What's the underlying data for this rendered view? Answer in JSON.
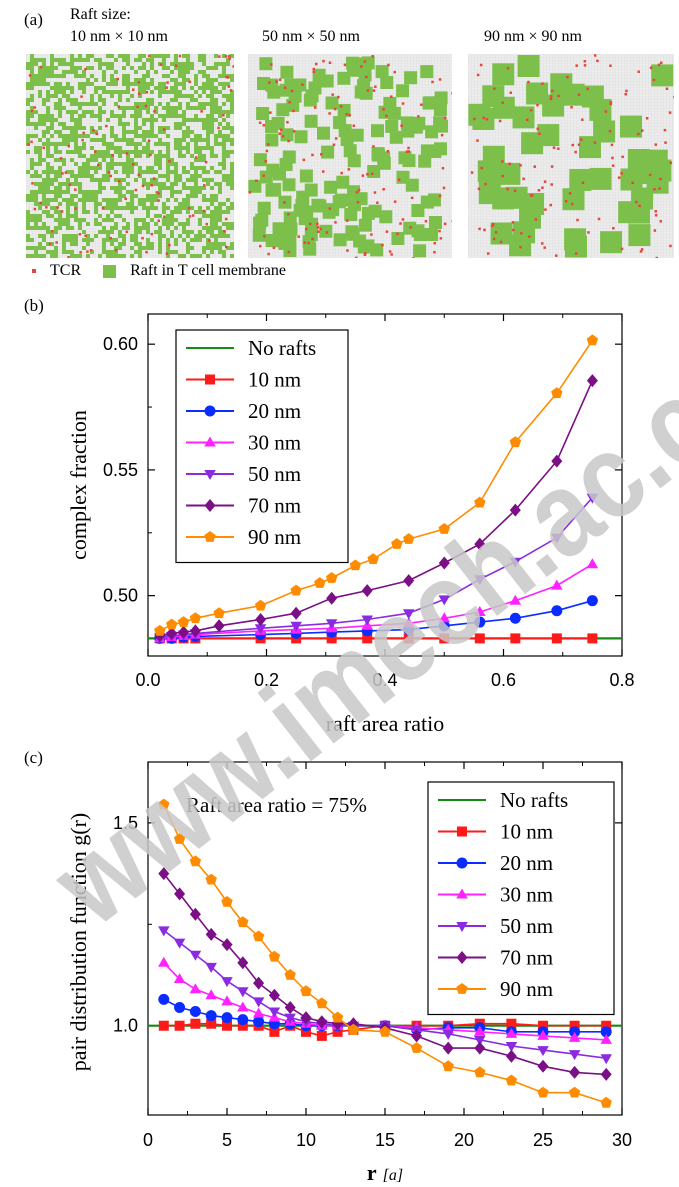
{
  "panel_a": {
    "label": "(a)",
    "title": "Raft size:",
    "sizes": [
      "10 nm × 10 nm",
      "50 nm × 50 nm",
      "90 nm × 90 nm"
    ],
    "legend": {
      "tcr": "TCR",
      "raft": "Raft in T cell membrane"
    },
    "colors": {
      "tcr": "#e8463c",
      "raft": "#7cc04b",
      "grid": "#d9d9d9"
    }
  },
  "watermark": "www.imech.ac.cn",
  "chart_data": [
    {
      "type": "line",
      "panel": "(b)",
      "xlabel": "raft area ratio",
      "ylabel": "complex fraction",
      "xlim": [
        0,
        0.8
      ],
      "ylim": [
        0.476,
        0.612
      ],
      "xticks": [
        0.0,
        0.2,
        0.4,
        0.6,
        0.8
      ],
      "xtick_labels": [
        "0.0",
        "0.2",
        "0.4",
        "0.6",
        "0.8"
      ],
      "yticks": [
        0.5,
        0.55,
        0.6
      ],
      "ytick_labels": [
        "0.50",
        "0.55",
        "0.60"
      ],
      "legend_position": "top-left",
      "series": [
        {
          "name": "No rafts",
          "color": "#138a13",
          "marker": "none",
          "x": [
            0.0,
            0.8
          ],
          "y": [
            0.483,
            0.483
          ]
        },
        {
          "name": "10 nm",
          "color": "#ff1a1a",
          "marker": "square",
          "x": [
            0.02,
            0.04,
            0.06,
            0.08,
            0.19,
            0.25,
            0.31,
            0.37,
            0.44,
            0.5,
            0.56,
            0.62,
            0.69,
            0.75
          ],
          "y": [
            0.483,
            0.483,
            0.483,
            0.483,
            0.483,
            0.483,
            0.483,
            0.483,
            0.483,
            0.483,
            0.483,
            0.483,
            0.483,
            0.483
          ]
        },
        {
          "name": "20 nm",
          "color": "#0a2cff",
          "marker": "circle",
          "x": [
            0.02,
            0.04,
            0.06,
            0.08,
            0.19,
            0.25,
            0.31,
            0.37,
            0.44,
            0.5,
            0.56,
            0.62,
            0.69,
            0.75
          ],
          "y": [
            0.483,
            0.483,
            0.4835,
            0.4838,
            0.4845,
            0.485,
            0.4855,
            0.486,
            0.4865,
            0.488,
            0.4895,
            0.491,
            0.494,
            0.498
          ]
        },
        {
          "name": "30 nm",
          "color": "#ff22ff",
          "marker": "triangle-up",
          "x": [
            0.02,
            0.04,
            0.06,
            0.08,
            0.19,
            0.25,
            0.31,
            0.37,
            0.44,
            0.5,
            0.56,
            0.62,
            0.69,
            0.75
          ],
          "y": [
            0.483,
            0.4835,
            0.484,
            0.4845,
            0.486,
            0.4865,
            0.487,
            0.488,
            0.489,
            0.491,
            0.4935,
            0.498,
            0.504,
            0.5125
          ]
        },
        {
          "name": "50 nm",
          "color": "#8a2be2",
          "marker": "triangle-down",
          "x": [
            0.02,
            0.04,
            0.06,
            0.08,
            0.19,
            0.25,
            0.31,
            0.37,
            0.44,
            0.5,
            0.56,
            0.62,
            0.69,
            0.75
          ],
          "y": [
            0.4835,
            0.484,
            0.4845,
            0.485,
            0.487,
            0.488,
            0.489,
            0.4905,
            0.493,
            0.4985,
            0.5065,
            0.5135,
            0.523,
            0.539
          ]
        },
        {
          "name": "70 nm",
          "color": "#7a0f86",
          "marker": "diamond",
          "x": [
            0.02,
            0.04,
            0.06,
            0.08,
            0.12,
            0.19,
            0.25,
            0.31,
            0.37,
            0.44,
            0.5,
            0.56,
            0.62,
            0.69,
            0.75
          ],
          "y": [
            0.484,
            0.485,
            0.4855,
            0.486,
            0.488,
            0.4905,
            0.493,
            0.499,
            0.502,
            0.506,
            0.513,
            0.5205,
            0.534,
            0.5535,
            0.5855
          ]
        },
        {
          "name": "90 nm",
          "color": "#ff8c00",
          "marker": "pentagon",
          "x": [
            0.02,
            0.04,
            0.06,
            0.08,
            0.12,
            0.19,
            0.25,
            0.29,
            0.31,
            0.35,
            0.38,
            0.42,
            0.44,
            0.5,
            0.56,
            0.62,
            0.69,
            0.75
          ],
          "y": [
            0.486,
            0.4885,
            0.4895,
            0.491,
            0.493,
            0.496,
            0.502,
            0.505,
            0.507,
            0.512,
            0.5145,
            0.5205,
            0.5225,
            0.5265,
            0.537,
            0.561,
            0.5805,
            0.6015
          ]
        }
      ]
    },
    {
      "type": "line",
      "panel": "(c)",
      "xlabel": "r",
      "xlabel_unit": "[a]",
      "ylabel": "pair distribution function g(r)",
      "annotation": "Raft area ratio = 75%",
      "xlim": [
        0,
        30
      ],
      "ylim": [
        0.78,
        1.65
      ],
      "xticks": [
        0,
        5,
        10,
        15,
        20,
        25,
        30
      ],
      "xtick_labels": [
        "0",
        "5",
        "10",
        "15",
        "20",
        "25",
        "30"
      ],
      "yticks": [
        1.0,
        1.5
      ],
      "ytick_labels": [
        "1.0",
        "1.5"
      ],
      "legend_position": "top-right",
      "series": [
        {
          "name": "No rafts",
          "color": "#138a13",
          "marker": "none",
          "x": [
            0,
            30
          ],
          "y": [
            1.0,
            1.0
          ]
        },
        {
          "name": "10 nm",
          "color": "#ff1a1a",
          "marker": "square",
          "x": [
            1,
            2,
            3,
            4,
            5,
            6,
            7,
            8,
            9,
            10,
            11,
            12,
            13,
            15,
            17,
            19,
            21,
            23,
            25,
            27,
            29
          ],
          "y": [
            1.0,
            1.0,
            1.005,
            1.005,
            1.0,
            1.0,
            1.0,
            0.985,
            1.0,
            0.985,
            0.975,
            0.985,
            0.99,
            1.0,
            1.0,
            1.0,
            1.005,
            1.005,
            1.0,
            1.0,
            1.0
          ]
        },
        {
          "name": "20 nm",
          "color": "#0a2cff",
          "marker": "circle",
          "x": [
            1,
            2,
            3,
            4,
            5,
            6,
            7,
            8,
            9,
            10,
            11,
            12,
            13,
            15,
            17,
            19,
            21,
            23,
            25,
            27,
            29
          ],
          "y": [
            1.065,
            1.045,
            1.035,
            1.025,
            1.02,
            1.015,
            1.01,
            1.005,
            1.005,
            1.0,
            1.0,
            1.0,
            1.0,
            1.0,
            0.99,
            0.995,
            0.995,
            0.985,
            0.985,
            0.985,
            0.985
          ]
        },
        {
          "name": "30 nm",
          "color": "#ff22ff",
          "marker": "triangle-up",
          "x": [
            1,
            2,
            3,
            4,
            5,
            6,
            7,
            8,
            9,
            10,
            11,
            12,
            13,
            15,
            17,
            19,
            21,
            23,
            25,
            27,
            29
          ],
          "y": [
            1.155,
            1.115,
            1.09,
            1.075,
            1.06,
            1.045,
            1.03,
            1.02,
            1.01,
            1.005,
            1.0,
            1.0,
            1.0,
            1.0,
            0.995,
            0.99,
            0.985,
            0.98,
            0.975,
            0.97,
            0.965
          ]
        },
        {
          "name": "50 nm",
          "color": "#8a2be2",
          "marker": "triangle-down",
          "x": [
            1,
            2,
            3,
            4,
            5,
            6,
            7,
            8,
            9,
            10,
            11,
            12,
            13,
            15,
            17,
            19,
            21,
            23,
            25,
            27,
            29
          ],
          "y": [
            1.235,
            1.205,
            1.175,
            1.145,
            1.11,
            1.085,
            1.06,
            1.035,
            1.02,
            1.01,
            1.005,
            1.0,
            1.0,
            1.0,
            0.99,
            0.98,
            0.965,
            0.95,
            0.94,
            0.93,
            0.92
          ]
        },
        {
          "name": "70 nm",
          "color": "#7a0f86",
          "marker": "diamond",
          "x": [
            1,
            2,
            3,
            4,
            5,
            6,
            7,
            8,
            9,
            10,
            11,
            12,
            13,
            15,
            17,
            19,
            21,
            23,
            25,
            27,
            29
          ],
          "y": [
            1.375,
            1.325,
            1.275,
            1.225,
            1.2,
            1.155,
            1.105,
            1.075,
            1.045,
            1.02,
            1.01,
            1.005,
            1.005,
            0.995,
            0.975,
            0.945,
            0.945,
            0.925,
            0.9,
            0.885,
            0.88
          ]
        },
        {
          "name": "90 nm",
          "color": "#ff8c00",
          "marker": "pentagon",
          "x": [
            1,
            2,
            3,
            4,
            5,
            6,
            7,
            8,
            9,
            10,
            11,
            12,
            13,
            15,
            17,
            19,
            21,
            23,
            25,
            27,
            29
          ],
          "y": [
            1.545,
            1.46,
            1.405,
            1.36,
            1.305,
            1.255,
            1.22,
            1.17,
            1.125,
            1.085,
            1.055,
            1.02,
            0.99,
            0.985,
            0.945,
            0.9,
            0.885,
            0.865,
            0.835,
            0.835,
            0.81
          ]
        }
      ]
    }
  ]
}
